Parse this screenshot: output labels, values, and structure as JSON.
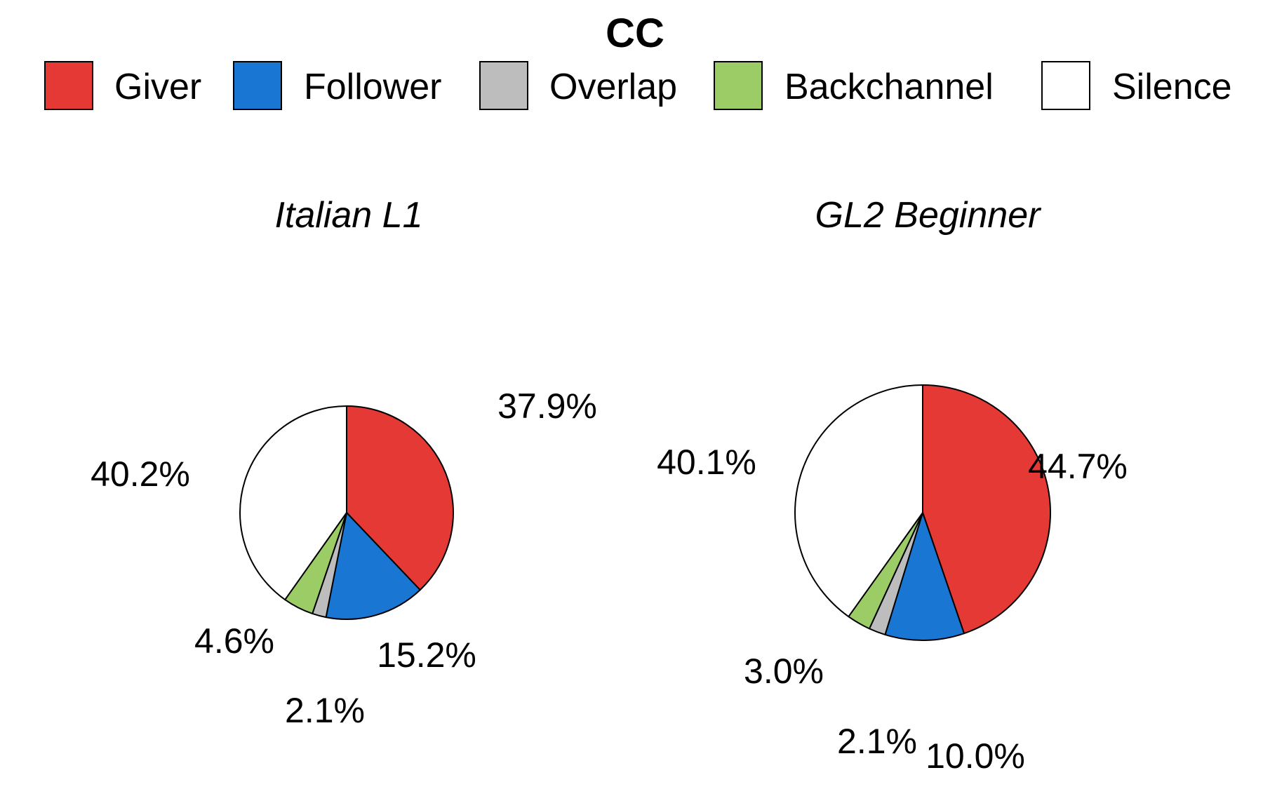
{
  "title": "CC",
  "legend": {
    "placement": "top",
    "items": [
      {
        "label": "Giver",
        "color": "#e53935"
      },
      {
        "label": "Follower",
        "color": "#1976d2"
      },
      {
        "label": "Overlap",
        "color": "#bdbdbd"
      },
      {
        "label": "Backchannel",
        "color": "#9ccc65"
      },
      {
        "label": "Silence",
        "color": "#ffffff"
      }
    ]
  },
  "chart_data": [
    {
      "type": "pie",
      "title": "Italian L1",
      "categories": [
        "Giver",
        "Follower",
        "Overlap",
        "Backchannel",
        "Silence"
      ],
      "values": [
        37.9,
        15.2,
        2.1,
        4.6,
        40.2
      ],
      "labels": [
        "37.9%",
        "15.2%",
        "2.1%",
        "4.6%",
        "40.2%"
      ]
    },
    {
      "type": "pie",
      "title": "GL2 Beginner",
      "categories": [
        "Giver",
        "Follower",
        "Overlap",
        "Backchannel",
        "Silence"
      ],
      "values": [
        44.7,
        10.0,
        2.1,
        3.0,
        40.1
      ],
      "labels": [
        "44.7%",
        "10.0%",
        "2.1%",
        "3.0%",
        "40.1%"
      ]
    }
  ]
}
